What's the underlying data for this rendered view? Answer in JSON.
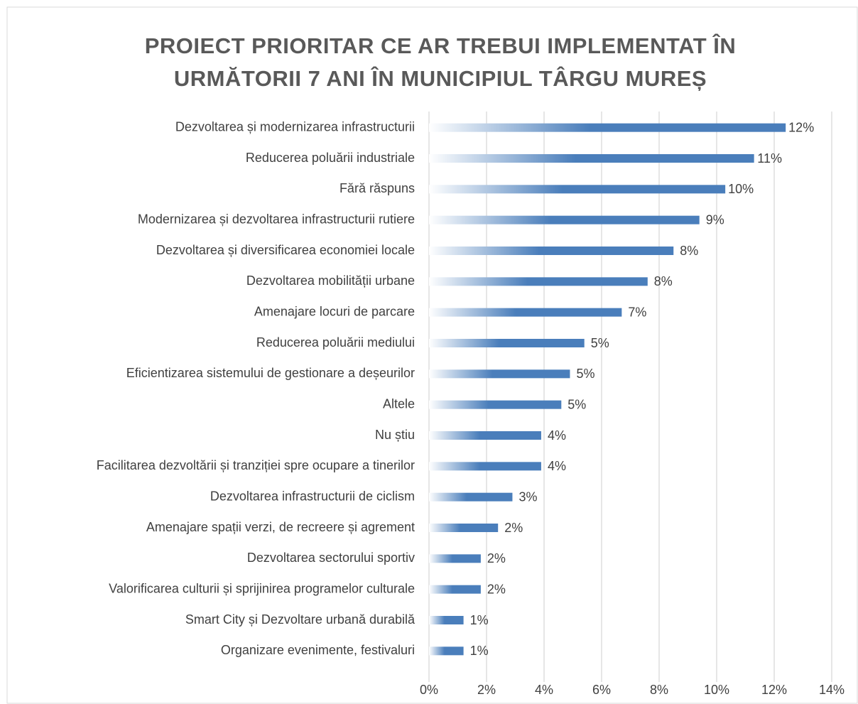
{
  "chart_data": {
    "type": "bar",
    "orientation": "horizontal",
    "title": "PROIECT PRIORITAR CE AR TREBUI IMPLEMENTAT ÎN URMĂTORII 7 ANI ÎN MUNICIPIUL TÂRGU MUREȘ",
    "categories": [
      "Dezvoltarea și modernizarea infrastructurii",
      "Reducerea poluării industriale",
      "Fără răspuns",
      "Modernizarea și dezvoltarea infrastructurii rutiere",
      "Dezvoltarea și diversificarea economiei locale",
      "Dezvoltarea mobilității urbane",
      "Amenajare locuri de parcare",
      "Reducerea poluării mediului",
      "Eficientizarea sistemului de gestionare a deșeurilor",
      "Altele",
      "Nu știu",
      "Facilitarea dezvoltării și tranziției spre ocupare a tinerilor",
      "Dezvoltarea infrastructurii de ciclism",
      "Amenajare spații verzi, de recreere și agrement",
      "Dezvoltarea sectorului sportiv",
      "Valorificarea culturii și sprijinirea programelor culturale",
      "Smart City și Dezvoltare urbană durabilă",
      "Organizare evenimente, festivaluri"
    ],
    "values": [
      12.4,
      11.3,
      10.3,
      9.4,
      8.5,
      7.6,
      6.7,
      5.4,
      4.9,
      4.6,
      3.9,
      3.9,
      2.9,
      2.4,
      1.8,
      1.8,
      1.2,
      1.2
    ],
    "value_labels": [
      "12%",
      "11%",
      "10%",
      "9%",
      "8%",
      "8%",
      "7%",
      "5%",
      "5%",
      "5%",
      "4%",
      "4%",
      "3%",
      "2%",
      "2%",
      "2%",
      "1%",
      "1%"
    ],
    "color": "#4a7ebb",
    "xlim": [
      0,
      14
    ],
    "xticks": [
      {
        "value": 0,
        "label": "0%"
      },
      {
        "value": 2,
        "label": "2%"
      },
      {
        "value": 4,
        "label": "4%"
      },
      {
        "value": 6,
        "label": "6%"
      },
      {
        "value": 8,
        "label": "8%"
      },
      {
        "value": 10,
        "label": "10%"
      },
      {
        "value": 12,
        "label": "12%"
      },
      {
        "value": 14,
        "label": "14%"
      }
    ],
    "grid": true
  }
}
